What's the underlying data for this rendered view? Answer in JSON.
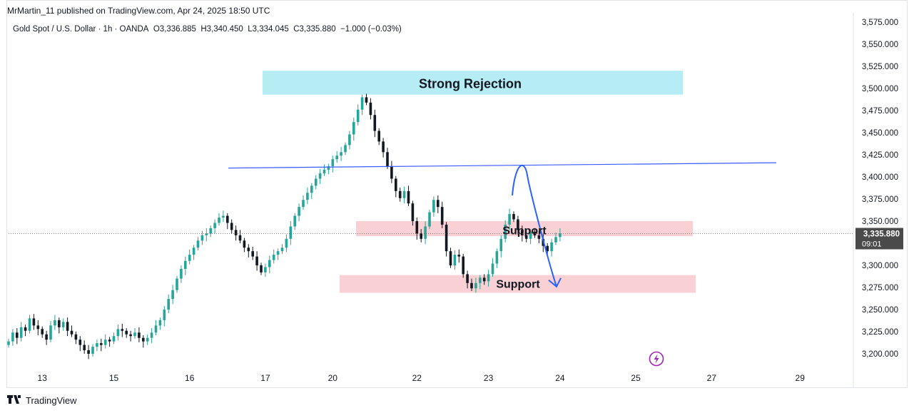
{
  "header": {
    "published": "MrMartin_11 published on TradingView.com, Apr 24, 2025 18:50 UTC"
  },
  "legend": {
    "symbol": "Gold Spot / U.S. Dollar · 1h · OANDA",
    "o_label": "O",
    "o_value": "3,336.885",
    "h_label": "H",
    "h_value": "3,340.450",
    "l_label": "L",
    "l_value": "3,334.045",
    "c_label": "C",
    "c_value": "3,335.880",
    "change": "−1.000 (−0.03%)"
  },
  "footer": {
    "brand": "TradingView"
  },
  "chart_data": {
    "type": "candlestick",
    "symbol": "XAUUSD",
    "timeframe": "1h",
    "ylim": [
      3185,
      3580
    ],
    "y_ticks": [
      "3,575.000",
      "3,550.000",
      "3,525.000",
      "3,500.000",
      "3,475.000",
      "3,450.000",
      "3,425.000",
      "3,400.000",
      "3,375.000",
      "3,350.000",
      "3,325.000",
      "3,300.000",
      "3,275.000",
      "3,250.000",
      "3,225.000",
      "3,200.000"
    ],
    "y_tick_values": [
      3575,
      3550,
      3525,
      3500,
      3475,
      3450,
      3425,
      3400,
      3375,
      3350,
      3325,
      3300,
      3275,
      3250,
      3225,
      3200
    ],
    "x_ticks": [
      "13",
      "15",
      "16",
      "17",
      "20",
      "22",
      "23",
      "24",
      "25",
      "27",
      "29"
    ],
    "x_tick_index": [
      8,
      25,
      43,
      61,
      77,
      97,
      114,
      131,
      149,
      167,
      188
    ],
    "current_price": {
      "label": "3,335.880",
      "countdown": "09:01",
      "value": 3335.88
    },
    "closes": [
      3214,
      3224,
      3218,
      3230,
      3226,
      3240,
      3232,
      3228,
      3222,
      3216,
      3232,
      3238,
      3230,
      3236,
      3226,
      3222,
      3216,
      3210,
      3204,
      3200,
      3208,
      3212,
      3210,
      3216,
      3214,
      3220,
      3228,
      3226,
      3222,
      3220,
      3224,
      3218,
      3214,
      3218,
      3224,
      3232,
      3238,
      3250,
      3262,
      3272,
      3285,
      3296,
      3305,
      3312,
      3320,
      3328,
      3334,
      3336,
      3342,
      3348,
      3354,
      3356,
      3348,
      3340,
      3334,
      3328,
      3320,
      3316,
      3310,
      3300,
      3292,
      3298,
      3306,
      3312,
      3316,
      3320,
      3330,
      3344,
      3356,
      3366,
      3374,
      3382,
      3390,
      3398,
      3404,
      3408,
      3412,
      3420,
      3424,
      3428,
      3436,
      3448,
      3462,
      3476,
      3490,
      3484,
      3470,
      3452,
      3440,
      3428,
      3412,
      3398,
      3384,
      3376,
      3384,
      3370,
      3350,
      3336,
      3330,
      3344,
      3360,
      3374,
      3366,
      3346,
      3316,
      3300,
      3312,
      3310,
      3290,
      3280,
      3274,
      3280,
      3286,
      3282,
      3290,
      3302,
      3316,
      3330,
      3346,
      3358,
      3352,
      3340,
      3334,
      3330,
      3338,
      3334,
      3330,
      3322,
      3316,
      3326,
      3332,
      3336
    ],
    "annotations": [
      {
        "label": "Strong Rejection",
        "type": "zone",
        "color": "#b2ebf2",
        "from": 3493,
        "to": 3520
      },
      {
        "label": "Support",
        "type": "zone",
        "color": "#f8c8cc",
        "from": 3333,
        "to": 3350
      },
      {
        "label": "Support",
        "type": "zone",
        "color": "#f8c8cc",
        "from": 3269,
        "to": 3289
      },
      {
        "label": "trendline",
        "type": "line",
        "color": "#3d5afe",
        "from_value": 3410,
        "to_value": 3416
      },
      {
        "label": "projection",
        "type": "arrow",
        "color": "#2962ff",
        "values": [
          3379,
          3410,
          3276
        ]
      }
    ]
  },
  "colors": {
    "up": "#26a69a",
    "down": "#131722",
    "accent": "#2962ff",
    "price_tag": "#4a4a4a"
  }
}
